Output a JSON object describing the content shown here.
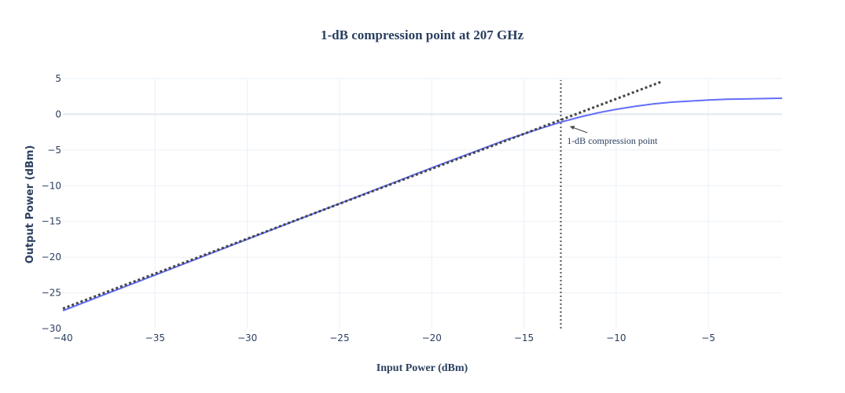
{
  "chart_data": {
    "type": "line",
    "title": "1-dB compression point at 207 GHz",
    "xlabel": "Input Power (dBm)",
    "ylabel": "Output Power (dBm)",
    "xlim": [
      -40,
      -1
    ],
    "ylim": [
      -30,
      5
    ],
    "x_ticks": [
      -40,
      -35,
      -30,
      -25,
      -20,
      -15,
      -10,
      -5
    ],
    "y_ticks": [
      -30,
      -25,
      -20,
      -15,
      -10,
      -5,
      0,
      5
    ],
    "grid": true,
    "series": [
      {
        "style": "solid",
        "color": "#636efa",
        "points": [
          [
            -40,
            -27.5
          ],
          [
            -35,
            -22.5
          ],
          [
            -30,
            -17.5
          ],
          [
            -25,
            -12.5
          ],
          [
            -20,
            -7.5
          ],
          [
            -16,
            -3.6
          ],
          [
            -14,
            -1.9
          ],
          [
            -13,
            -1.1
          ],
          [
            -12,
            -0.4
          ],
          [
            -11,
            0.2
          ],
          [
            -10,
            0.7
          ],
          [
            -9,
            1.1
          ],
          [
            -8,
            1.45
          ],
          [
            -7,
            1.7
          ],
          [
            -6,
            1.85
          ],
          [
            -5,
            2.0
          ],
          [
            -4,
            2.1
          ],
          [
            -3,
            2.15
          ],
          [
            -2,
            2.2
          ],
          [
            -1,
            2.25
          ]
        ]
      },
      {
        "style": "dotted",
        "color": "#444444",
        "points": [
          [
            -40,
            -27.2
          ],
          [
            -7.5,
            4.6
          ]
        ]
      }
    ],
    "vertical_line": {
      "x": -13,
      "style": "dotted",
      "color": "#555555",
      "y_range": [
        -30,
        4.8
      ]
    },
    "annotation": {
      "text": "1-dB compression point",
      "arrow_to": [
        -12.5,
        -1.7
      ]
    }
  }
}
